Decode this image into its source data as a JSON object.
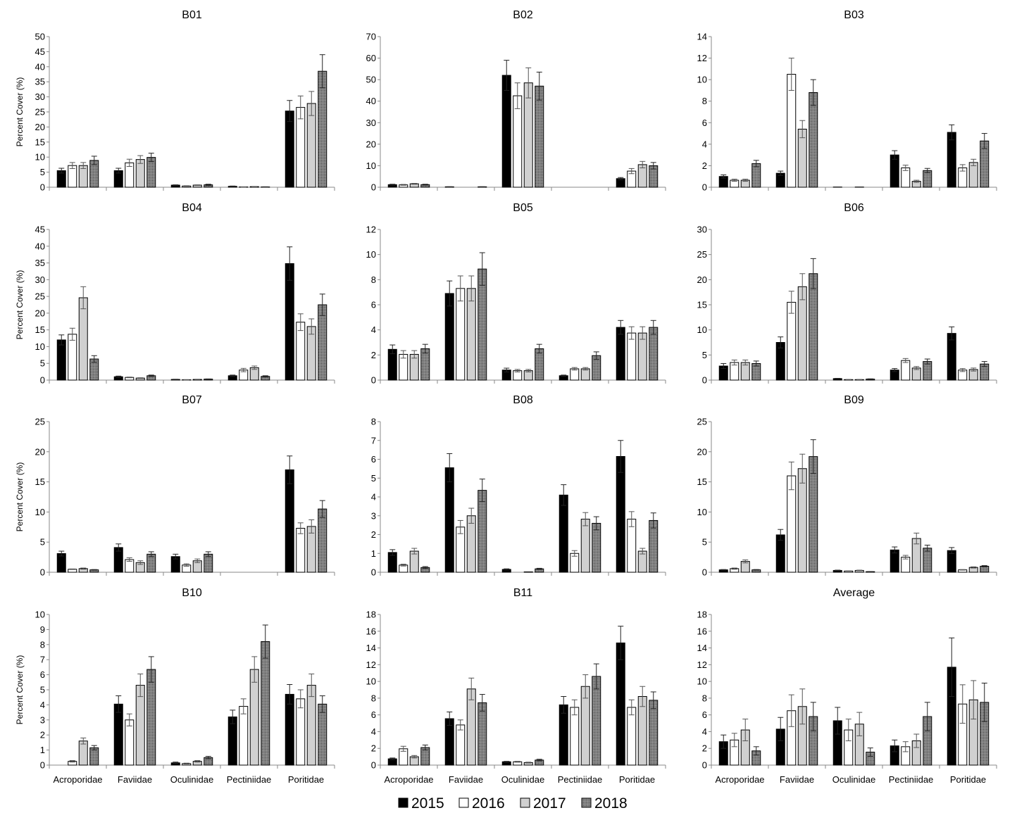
{
  "legend": [
    {
      "name": "2015",
      "color": "#000000",
      "pattern": "solid"
    },
    {
      "name": "2016",
      "color": "#ffffff",
      "pattern": "solid"
    },
    {
      "name": "2017",
      "color": "#d0d0d0",
      "pattern": "solid"
    },
    {
      "name": "2018",
      "color": "#808080",
      "pattern": "dotted-hatch"
    }
  ],
  "chart_data": [
    {
      "type": "bar",
      "title": "B01",
      "ylabel": "Percent Cover (%)",
      "ylim": [
        0,
        50
      ],
      "ystep": 5,
      "categories": [
        "Acroporidae",
        "Faviidae",
        "Oculinidae",
        "Pectiniidae",
        "Poritidae"
      ],
      "series": [
        {
          "name": "2015",
          "values": [
            5.5,
            5.5,
            0.7,
            0.3,
            25.3
          ],
          "errors": [
            0.8,
            0.8,
            0.1,
            0.1,
            3.5
          ]
        },
        {
          "name": "2016",
          "values": [
            7.2,
            8.1,
            0.4,
            0.1,
            26.5
          ],
          "errors": [
            1.0,
            1.2,
            0.1,
            0.05,
            3.8
          ]
        },
        {
          "name": "2017",
          "values": [
            7.2,
            9.2,
            0.7,
            0.2,
            27.8
          ],
          "errors": [
            1.0,
            1.3,
            0.1,
            0.05,
            4.0
          ]
        },
        {
          "name": "2018",
          "values": [
            8.9,
            9.9,
            0.8,
            0.1,
            38.5
          ],
          "errors": [
            1.4,
            1.4,
            0.2,
            0.05,
            5.5
          ]
        }
      ]
    },
    {
      "type": "bar",
      "title": "B02",
      "ylabel": "",
      "ylim": [
        0,
        70
      ],
      "ystep": 10,
      "categories": [
        "Acroporidae",
        "Faviidae",
        "Oculinidae",
        "Pectiniidae",
        "Poritidae"
      ],
      "series": [
        {
          "name": "2015",
          "values": [
            1.2,
            0.2,
            52,
            0,
            4
          ],
          "errors": [
            0.2,
            0.05,
            7,
            0,
            0.5
          ]
        },
        {
          "name": "2016",
          "values": [
            1.1,
            0,
            42.5,
            0,
            7.5
          ],
          "errors": [
            0.2,
            0,
            6,
            0,
            1.2
          ]
        },
        {
          "name": "2017",
          "values": [
            1.6,
            0,
            48.5,
            0,
            10.5
          ],
          "errors": [
            0.2,
            0,
            7,
            0,
            1.5
          ]
        },
        {
          "name": "2018",
          "values": [
            1.2,
            0.2,
            47,
            0,
            10
          ],
          "errors": [
            0.2,
            0.05,
            6.5,
            0,
            1.5
          ]
        }
      ]
    },
    {
      "type": "bar",
      "title": "B03",
      "ylabel": "",
      "ylim": [
        0,
        14
      ],
      "ystep": 2,
      "categories": [
        "Acroporidae",
        "Faviidae",
        "Oculinidae",
        "Pectiniidae",
        "Poritidae"
      ],
      "series": [
        {
          "name": "2015",
          "values": [
            1.0,
            1.3,
            0.02,
            3.0,
            5.1
          ],
          "errors": [
            0.15,
            0.2,
            0,
            0.4,
            0.7
          ]
        },
        {
          "name": "2016",
          "values": [
            0.65,
            10.5,
            0,
            1.8,
            1.8
          ],
          "errors": [
            0.1,
            1.5,
            0,
            0.25,
            0.3
          ]
        },
        {
          "name": "2017",
          "values": [
            0.65,
            5.4,
            0.02,
            0.55,
            2.3
          ],
          "errors": [
            0.1,
            0.8,
            0,
            0.1,
            0.3
          ]
        },
        {
          "name": "2018",
          "values": [
            2.2,
            8.8,
            0,
            1.55,
            4.3
          ],
          "errors": [
            0.3,
            1.2,
            0,
            0.2,
            0.7
          ]
        }
      ]
    },
    {
      "type": "bar",
      "title": "B04",
      "ylabel": "Percent Cover (%)",
      "ylim": [
        0,
        45
      ],
      "ystep": 5,
      "categories": [
        "Acroporidae",
        "Faviidae",
        "Oculinidae",
        "Pectiniidae",
        "Poritidae"
      ],
      "series": [
        {
          "name": "2015",
          "values": [
            12,
            1,
            0.2,
            1.3,
            34.8
          ],
          "errors": [
            1.5,
            0.2,
            0.05,
            0.2,
            5
          ]
        },
        {
          "name": "2016",
          "values": [
            13.7,
            0.8,
            0.1,
            3,
            17.3
          ],
          "errors": [
            1.8,
            0.1,
            0.05,
            0.5,
            2.5
          ]
        },
        {
          "name": "2017",
          "values": [
            24.6,
            0.6,
            0.2,
            3.7,
            16
          ],
          "errors": [
            3.3,
            0.1,
            0.05,
            0.5,
            2.3
          ]
        },
        {
          "name": "2018",
          "values": [
            6.3,
            1.3,
            0.3,
            1.1,
            22.5
          ],
          "errors": [
            1,
            0.2,
            0.05,
            0.2,
            3.2
          ]
        }
      ]
    },
    {
      "type": "bar",
      "title": "B05",
      "ylabel": "",
      "ylim": [
        0,
        12
      ],
      "ystep": 2,
      "categories": [
        "Acroporidae",
        "Faviidae",
        "Oculinidae",
        "Pectiniidae",
        "Poritidae"
      ],
      "series": [
        {
          "name": "2015",
          "values": [
            2.45,
            6.9,
            0.8,
            0.35,
            4.2
          ],
          "errors": [
            0.35,
            1,
            0.15,
            0.05,
            0.55
          ]
        },
        {
          "name": "2016",
          "values": [
            2.05,
            7.3,
            0.75,
            0.9,
            3.75
          ],
          "errors": [
            0.3,
            1,
            0.1,
            0.1,
            0.5
          ]
        },
        {
          "name": "2017",
          "values": [
            2.05,
            7.3,
            0.75,
            0.9,
            3.75
          ],
          "errors": [
            0.3,
            1,
            0.1,
            0.1,
            0.5
          ]
        },
        {
          "name": "2018",
          "values": [
            2.5,
            8.85,
            2.5,
            1.95,
            4.2
          ],
          "errors": [
            0.35,
            1.3,
            0.35,
            0.3,
            0.55
          ]
        }
      ]
    },
    {
      "type": "bar",
      "title": "B06",
      "ylabel": "",
      "ylim": [
        0,
        30
      ],
      "ystep": 5,
      "categories": [
        "Acroporidae",
        "Faviidae",
        "Oculinidae",
        "Pectiniidae",
        "Poritidae"
      ],
      "series": [
        {
          "name": "2015",
          "values": [
            2.8,
            7.5,
            0.3,
            2,
            9.3
          ],
          "errors": [
            0.5,
            1.1,
            0.05,
            0.3,
            1.3
          ]
        },
        {
          "name": "2016",
          "values": [
            3.5,
            15.5,
            0.1,
            3.9,
            2
          ],
          "errors": [
            0.5,
            2.2,
            0.02,
            0.4,
            0.3
          ]
        },
        {
          "name": "2017",
          "values": [
            3.5,
            18.6,
            0.1,
            2.4,
            2.1
          ],
          "errors": [
            0.5,
            2.6,
            0.02,
            0.3,
            0.3
          ]
        },
        {
          "name": "2018",
          "values": [
            3.3,
            21.2,
            0.2,
            3.7,
            3.2
          ],
          "errors": [
            0.5,
            3,
            0.05,
            0.5,
            0.5
          ]
        }
      ]
    },
    {
      "type": "bar",
      "title": "B07",
      "ylabel": "Percent Cover (%)",
      "ylim": [
        0,
        25
      ],
      "ystep": 5,
      "categories": [
        "Acroporidae",
        "Faviidae",
        "Oculinidae",
        "Pectiniidae",
        "Poritidae"
      ],
      "series": [
        {
          "name": "2015",
          "values": [
            3.1,
            4.1,
            2.6,
            0,
            17
          ],
          "errors": [
            0.4,
            0.6,
            0.4,
            0,
            2.3
          ]
        },
        {
          "name": "2016",
          "values": [
            0.5,
            2.1,
            1.2,
            0,
            7.3
          ],
          "errors": [
            0.05,
            0.3,
            0.2,
            0,
            0.9
          ]
        },
        {
          "name": "2017",
          "values": [
            0.6,
            1.6,
            1.9,
            0,
            7.6
          ],
          "errors": [
            0.1,
            0.3,
            0.3,
            0,
            1.1
          ]
        },
        {
          "name": "2018",
          "values": [
            0.4,
            3,
            3,
            0,
            10.5
          ],
          "errors": [
            0.05,
            0.4,
            0.4,
            0,
            1.4
          ]
        }
      ]
    },
    {
      "type": "bar",
      "title": "B08",
      "ylabel": "",
      "ylim": [
        0,
        8
      ],
      "ystep": 1,
      "categories": [
        "Acroporidae",
        "Faviidae",
        "Oculinidae",
        "Pectiniidae",
        "Poritidae"
      ],
      "series": [
        {
          "name": "2015",
          "values": [
            1.05,
            5.55,
            0.15,
            4.1,
            6.15
          ],
          "errors": [
            0.15,
            0.75,
            0.03,
            0.55,
            0.85
          ]
        },
        {
          "name": "2016",
          "values": [
            0.38,
            2.4,
            0,
            1,
            2.82
          ],
          "errors": [
            0.05,
            0.35,
            0,
            0.15,
            0.4
          ]
        },
        {
          "name": "2017",
          "values": [
            1.12,
            3,
            0.02,
            2.82,
            1.12
          ],
          "errors": [
            0.15,
            0.4,
            0,
            0.35,
            0.15
          ]
        },
        {
          "name": "2018",
          "values": [
            0.25,
            4.35,
            0.18,
            2.6,
            2.75
          ],
          "errors": [
            0.05,
            0.6,
            0.03,
            0.35,
            0.4
          ]
        }
      ]
    },
    {
      "type": "bar",
      "title": "B09",
      "ylabel": "",
      "ylim": [
        0,
        25
      ],
      "ystep": 5,
      "categories": [
        "Acroporidae",
        "Faviidae",
        "Oculinidae",
        "Pectiniidae",
        "Poritidae"
      ],
      "series": [
        {
          "name": "2015",
          "values": [
            0.4,
            6.2,
            0.3,
            3.7,
            3.6
          ],
          "errors": [
            0.05,
            0.9,
            0.05,
            0.5,
            0.5
          ]
        },
        {
          "name": "2016",
          "values": [
            0.6,
            16,
            0.2,
            2.5,
            0.4
          ],
          "errors": [
            0.1,
            2.3,
            0.03,
            0.3,
            0.05
          ]
        },
        {
          "name": "2017",
          "values": [
            1.8,
            17.2,
            0.3,
            5.6,
            0.8
          ],
          "errors": [
            0.25,
            2.4,
            0.05,
            0.9,
            0.1
          ]
        },
        {
          "name": "2018",
          "values": [
            0.4,
            19.2,
            0.1,
            4,
            1
          ],
          "errors": [
            0.05,
            2.8,
            0.02,
            0.5,
            0.1
          ]
        }
      ]
    },
    {
      "type": "bar",
      "title": "B10",
      "ylabel": "Percent Cover (%)",
      "ylim": [
        0,
        10
      ],
      "ystep": 1,
      "categories": [
        "Acroporidae",
        "Faviidae",
        "Oculinidae",
        "Pectiniidae",
        "Poritidae"
      ],
      "series": [
        {
          "name": "2015",
          "values": [
            0,
            4.05,
            0.15,
            3.2,
            4.7
          ],
          "errors": [
            0,
            0.55,
            0.05,
            0.45,
            0.65
          ]
        },
        {
          "name": "2016",
          "values": [
            0.25,
            3,
            0.1,
            3.9,
            4.4
          ],
          "errors": [
            0.05,
            0.4,
            0.03,
            0.5,
            0.6
          ]
        },
        {
          "name": "2017",
          "values": [
            1.6,
            5.3,
            0.25,
            6.35,
            5.3
          ],
          "errors": [
            0.2,
            0.75,
            0.05,
            0.85,
            0.75
          ]
        },
        {
          "name": "2018",
          "values": [
            1.15,
            6.35,
            0.5,
            8.2,
            4.05
          ],
          "errors": [
            0.15,
            0.85,
            0.08,
            1.1,
            0.55
          ]
        }
      ]
    },
    {
      "type": "bar",
      "title": "B11",
      "ylabel": "",
      "ylim": [
        0,
        18
      ],
      "ystep": 2,
      "categories": [
        "Acroporidae",
        "Faviidae",
        "Oculinidae",
        "Pectiniidae",
        "Poritidae"
      ],
      "series": [
        {
          "name": "2015",
          "values": [
            0.75,
            5.55,
            0.4,
            7.2,
            14.6
          ],
          "errors": [
            0.1,
            0.8,
            0.05,
            1,
            2
          ]
        },
        {
          "name": "2016",
          "values": [
            1.95,
            4.8,
            0.4,
            6.9,
            6.9
          ],
          "errors": [
            0.3,
            0.6,
            0.05,
            0.9,
            0.9
          ]
        },
        {
          "name": "2017",
          "values": [
            1,
            9.1,
            0.3,
            9.4,
            8.2
          ],
          "errors": [
            0.15,
            1.3,
            0.05,
            1.4,
            1.2
          ]
        },
        {
          "name": "2018",
          "values": [
            2.1,
            7.45,
            0.6,
            10.6,
            7.75
          ],
          "errors": [
            0.3,
            1,
            0.1,
            1.5,
            1
          ]
        }
      ]
    },
    {
      "type": "bar",
      "title": "Average",
      "ylabel": "",
      "ylim": [
        0,
        18
      ],
      "ystep": 2,
      "categories": [
        "Acroporidae",
        "Faviidae",
        "Oculinidae",
        "Pectiniidae",
        "Poritidae"
      ],
      "series": [
        {
          "name": "2015",
          "values": [
            2.8,
            4.3,
            5.3,
            2.3,
            11.7
          ],
          "errors": [
            0.8,
            1.4,
            1.6,
            0.7,
            3.5
          ]
        },
        {
          "name": "2016",
          "values": [
            3,
            6.5,
            4.2,
            2.2,
            7.3
          ],
          "errors": [
            0.8,
            1.9,
            1.3,
            0.6,
            2.3
          ]
        },
        {
          "name": "2017",
          "values": [
            4.2,
            7,
            4.9,
            2.9,
            7.8
          ],
          "errors": [
            1.3,
            2.1,
            1.4,
            0.8,
            2.3
          ]
        },
        {
          "name": "2018",
          "values": [
            1.7,
            5.8,
            1.55,
            5.8,
            7.5
          ],
          "errors": [
            0.5,
            1.7,
            0.5,
            1.7,
            2.3
          ]
        }
      ]
    }
  ]
}
